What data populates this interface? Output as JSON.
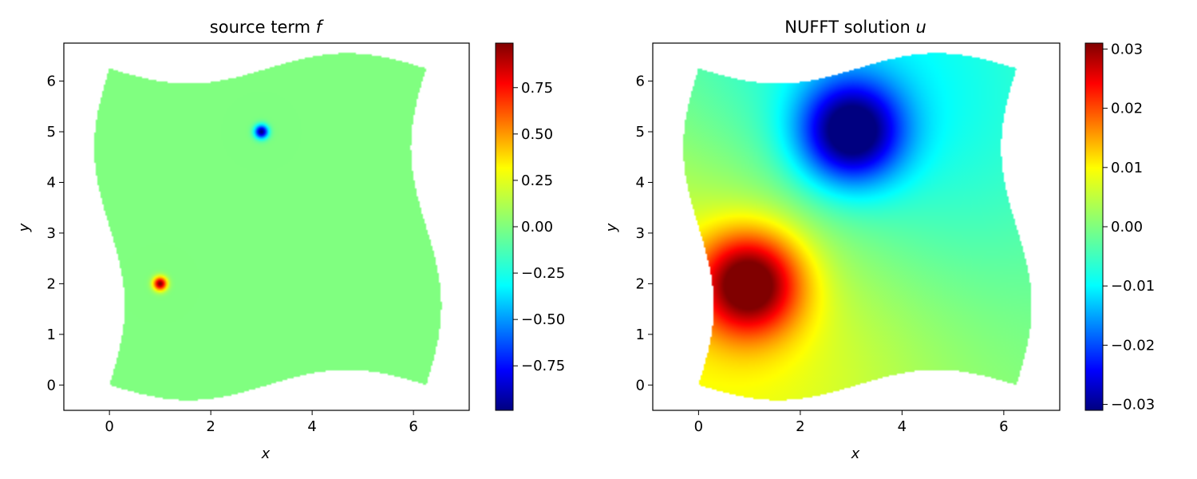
{
  "chart_data": [
    {
      "type": "heatmap",
      "title": "source term",
      "title_math": "f",
      "xlabel": "x",
      "ylabel": "y",
      "xlim": [
        -0.9,
        7.1
      ],
      "ylim": [
        -0.5,
        6.75
      ],
      "x_ticks": [
        0,
        2,
        4,
        6
      ],
      "y_ticks": [
        0,
        1,
        2,
        3,
        4,
        5,
        6
      ],
      "colormap": "jet",
      "colorbar": {
        "range": [
          -0.99,
          0.99
        ],
        "ticks": [
          -0.75,
          -0.5,
          -0.25,
          0.0,
          0.25,
          0.5,
          0.75
        ],
        "tick_labels": [
          "−0.75",
          "−0.50",
          "−0.25",
          "0.00",
          "0.25",
          "0.50",
          "0.75"
        ]
      },
      "domain": {
        "bottom_left": [
          0,
          0
        ],
        "bottom_right": [
          6.25,
          0
        ],
        "top_left": [
          0,
          6.25
        ],
        "top_right": [
          6.25,
          6.25
        ],
        "edge_wave_amplitude": 0.3
      },
      "sources": [
        {
          "x": 1.0,
          "y": 2.0,
          "value": 0.99,
          "width": 0.09
        },
        {
          "x": 3.0,
          "y": 5.0,
          "value": -0.99,
          "width": 0.09
        }
      ],
      "background_value": 0.0
    },
    {
      "type": "heatmap",
      "title": "NUFFT solution",
      "title_math": "u",
      "xlabel": "x",
      "ylabel": "y",
      "xlim": [
        -0.9,
        7.1
      ],
      "ylim": [
        -0.5,
        6.75
      ],
      "x_ticks": [
        0,
        2,
        4,
        6
      ],
      "y_ticks": [
        0,
        1,
        2,
        3,
        4,
        5,
        6
      ],
      "colormap": "jet",
      "colorbar": {
        "range": [
          -0.031,
          0.031
        ],
        "ticks": [
          -0.03,
          -0.02,
          -0.01,
          0.0,
          0.01,
          0.02,
          0.03
        ],
        "tick_labels": [
          "−0.03",
          "−0.02",
          "−0.01",
          "0.00",
          "0.01",
          "0.02",
          "0.03"
        ]
      },
      "domain": {
        "bottom_left": [
          0,
          0
        ],
        "bottom_right": [
          6.25,
          0
        ],
        "top_left": [
          0,
          6.25
        ],
        "top_right": [
          6.25,
          6.25
        ],
        "edge_wave_amplitude": 0.3
      },
      "sources": [
        {
          "x": 1.0,
          "y": 2.0,
          "value": 0.031,
          "width": 0.7
        },
        {
          "x": 3.0,
          "y": 5.0,
          "value": -0.031,
          "width": 0.7
        }
      ],
      "background_value": 0.0,
      "far_field": [
        {
          "x": 1.0,
          "y": 2.0,
          "value": 0.012,
          "width": 3.0
        },
        {
          "x": 3.0,
          "y": 5.0,
          "value": -0.012,
          "width": 3.0
        }
      ]
    }
  ]
}
